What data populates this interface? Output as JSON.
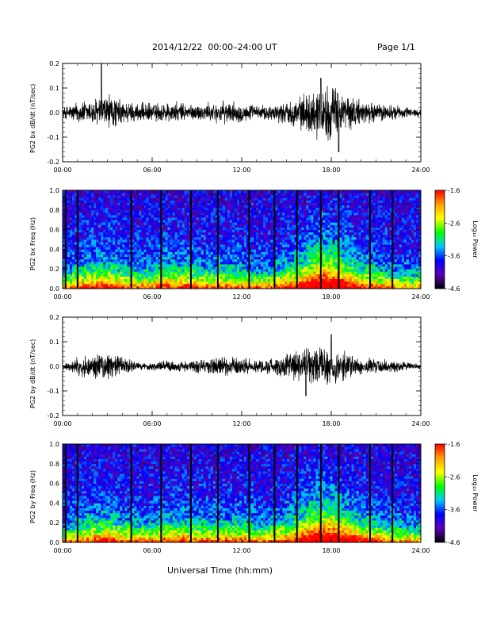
{
  "header": {
    "title": "2014/12/22  00:00–24:00 UT",
    "page": "Page 1/1"
  },
  "footer": {
    "xlabel": "Universal Time (hh:mm)"
  },
  "colorbar": {
    "ticks": [
      "-1.6",
      "-2.6",
      "-3.6",
      "-4.6"
    ],
    "label": "Log₁₀ Power",
    "colors": [
      "#ff0000",
      "#ffa000",
      "#ffff00",
      "#00ff00",
      "#00c8ff",
      "#0000ff",
      "#5a00b4",
      "#000000"
    ]
  },
  "chart_data": [
    {
      "type": "line",
      "ylabel": "PG2 bx dB/dt (nT/sec)",
      "xlim": [
        0,
        24
      ],
      "ylim": [
        -0.2,
        0.2
      ],
      "xticks": [
        "00:00",
        "06:00",
        "12:00",
        "18:00",
        "24:00"
      ],
      "yticks": [
        "0.2",
        "0.1",
        "0.0",
        "-0.1",
        "-0.2"
      ],
      "envelope": {
        "hours": [
          0,
          1,
          2,
          3,
          4,
          5,
          6,
          7,
          8,
          9,
          10,
          11,
          12,
          13,
          14,
          15,
          16,
          17,
          18,
          19,
          20,
          21,
          22,
          23,
          24
        ],
        "amplitude": [
          0.02,
          0.04,
          0.05,
          0.07,
          0.045,
          0.035,
          0.035,
          0.04,
          0.035,
          0.03,
          0.035,
          0.04,
          0.035,
          0.025,
          0.03,
          0.04,
          0.06,
          0.09,
          0.1,
          0.07,
          0.045,
          0.035,
          0.03,
          0.02,
          0.015
        ]
      },
      "peaks": [
        {
          "x": 2.6,
          "y": 0.2
        },
        {
          "x": 17.3,
          "y": 0.14
        },
        {
          "x": 18.5,
          "y": -0.16
        }
      ]
    },
    {
      "type": "heatmap",
      "ylabel": "PG2 bx Freq (Hz)",
      "xlim": [
        0,
        24
      ],
      "ylim": [
        0,
        1
      ],
      "xticks": [
        "00:00",
        "06:00",
        "12:00",
        "18:00",
        "24:00"
      ],
      "yticks": [
        "1.0",
        "0.8",
        "0.6",
        "0.4",
        "0.2",
        "0.0"
      ],
      "zlim": [
        -4.6,
        -1.6
      ],
      "zlabel": "Log₁₀ Power",
      "data_gaps_hours": [
        0.2,
        1.0,
        4.6,
        6.6,
        8.6,
        10.4,
        12.5,
        14.2,
        15.7,
        17.3,
        18.5,
        20.6,
        22.1
      ],
      "activity": {
        "hours": [
          0,
          1,
          2,
          3,
          4,
          5,
          6,
          7,
          8,
          9,
          10,
          11,
          12,
          13,
          14,
          15,
          16,
          17,
          18,
          19,
          20,
          21,
          22,
          23,
          24
        ],
        "level": [
          0.25,
          0.45,
          0.55,
          0.6,
          0.45,
          0.4,
          0.45,
          0.55,
          0.5,
          0.45,
          0.45,
          0.45,
          0.45,
          0.35,
          0.4,
          0.5,
          0.7,
          0.95,
          1.0,
          0.75,
          0.55,
          0.45,
          0.35,
          0.3,
          0.25
        ]
      }
    },
    {
      "type": "line",
      "ylabel": "PG2 by dB/dt (nT/sec)",
      "xlim": [
        0,
        24
      ],
      "ylim": [
        -0.2,
        0.2
      ],
      "xticks": [
        "00:00",
        "06:00",
        "12:00",
        "18:00",
        "24:00"
      ],
      "yticks": [
        "0.2",
        "0.1",
        "0.0",
        "-0.1",
        "-0.2"
      ],
      "envelope": {
        "hours": [
          0,
          1,
          2,
          3,
          4,
          5,
          6,
          7,
          8,
          9,
          10,
          11,
          12,
          13,
          14,
          15,
          16,
          17,
          18,
          19,
          20,
          21,
          22,
          23,
          24
        ],
        "amplitude": [
          0.01,
          0.03,
          0.045,
          0.05,
          0.035,
          0.015,
          0.015,
          0.02,
          0.02,
          0.025,
          0.035,
          0.035,
          0.03,
          0.025,
          0.03,
          0.045,
          0.06,
          0.07,
          0.075,
          0.05,
          0.035,
          0.03,
          0.025,
          0.015,
          0.01
        ]
      },
      "peaks": [
        {
          "x": 18.0,
          "y": 0.13
        },
        {
          "x": 16.3,
          "y": -0.12
        }
      ]
    },
    {
      "type": "heatmap",
      "ylabel": "PG2 by Freq (Hz)",
      "xlim": [
        0,
        24
      ],
      "ylim": [
        0,
        1
      ],
      "xticks": [
        "00:00",
        "06:00",
        "12:00",
        "18:00",
        "24:00"
      ],
      "yticks": [
        "1.0",
        "0.8",
        "0.6",
        "0.4",
        "0.2",
        "0.0"
      ],
      "zlim": [
        -4.6,
        -1.6
      ],
      "zlabel": "Log₁₀ Power",
      "data_gaps_hours": [
        0.2,
        1.0,
        4.6,
        6.6,
        8.6,
        10.4,
        12.5,
        14.2,
        15.7,
        17.3,
        18.5,
        20.6,
        22.1
      ],
      "activity": {
        "hours": [
          0,
          1,
          2,
          3,
          4,
          5,
          6,
          7,
          8,
          9,
          10,
          11,
          12,
          13,
          14,
          15,
          16,
          17,
          18,
          19,
          20,
          21,
          22,
          23,
          24
        ],
        "level": [
          0.25,
          0.4,
          0.5,
          0.55,
          0.45,
          0.4,
          0.4,
          0.5,
          0.5,
          0.45,
          0.45,
          0.45,
          0.45,
          0.35,
          0.4,
          0.5,
          0.7,
          0.95,
          1.0,
          0.75,
          0.55,
          0.45,
          0.35,
          0.3,
          0.25
        ]
      }
    }
  ]
}
